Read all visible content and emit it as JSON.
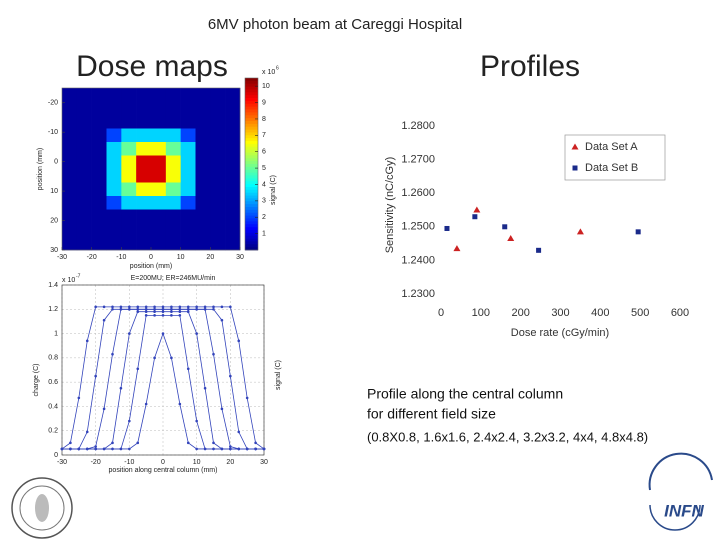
{
  "slide": {
    "title": "6MV photon beam  at Careggi Hospital",
    "left_heading": "Dose maps",
    "right_heading": "Profiles",
    "caption": [
      "Profile along the central column",
      "for different field size",
      "(0.8X0.8, 1.6x1.6, 2.4x2.4, 3.2x3.2, 4x4, 4.8x4.8)"
    ],
    "logo_text": "INFN"
  },
  "chart_data": [
    {
      "type": "heatmap",
      "x_label": "position (mm)",
      "y_label": "position (mm)",
      "xlim": [
        -30,
        30
      ],
      "xticks": [
        -30,
        -20,
        -10,
        0,
        10,
        20,
        30
      ],
      "ylim": [
        -25,
        30
      ],
      "yticks": [
        -20,
        -10,
        0,
        10,
        20,
        30
      ],
      "y_reversed": true,
      "z": [
        [
          0.3,
          0.3,
          0.3,
          0.3,
          0.3,
          0.3,
          0.3,
          0.3,
          0.3,
          0.3,
          0.3,
          0.3
        ],
        [
          0.3,
          0.3,
          0.3,
          0.3,
          0.3,
          0.3,
          0.3,
          0.3,
          0.3,
          0.3,
          0.3,
          0.3
        ],
        [
          0.3,
          0.3,
          0.3,
          0.3,
          0.3,
          0.3,
          0.3,
          0.3,
          0.3,
          0.3,
          0.3,
          0.3
        ],
        [
          0.3,
          0.3,
          0.3,
          2.0,
          3.5,
          3.5,
          3.5,
          3.5,
          2.0,
          0.3,
          0.3,
          0.3
        ],
        [
          0.3,
          0.3,
          0.3,
          3.5,
          5.0,
          6.5,
          6.5,
          5.0,
          3.5,
          0.3,
          0.3,
          0.3
        ],
        [
          0.3,
          0.3,
          0.3,
          3.5,
          6.5,
          9.6,
          9.6,
          6.5,
          3.5,
          0.3,
          0.3,
          0.3
        ],
        [
          0.3,
          0.3,
          0.3,
          3.5,
          6.5,
          9.6,
          9.6,
          6.5,
          3.5,
          0.3,
          0.3,
          0.3
        ],
        [
          0.3,
          0.3,
          0.3,
          3.5,
          5.0,
          6.5,
          6.5,
          5.0,
          3.5,
          0.3,
          0.3,
          0.3
        ],
        [
          0.3,
          0.3,
          0.3,
          2.0,
          3.5,
          3.5,
          3.5,
          3.5,
          2.0,
          0.3,
          0.3,
          0.3
        ],
        [
          0.3,
          0.3,
          0.3,
          0.3,
          0.3,
          0.3,
          0.3,
          0.3,
          0.3,
          0.3,
          0.3,
          0.3
        ],
        [
          0.3,
          0.3,
          0.3,
          0.3,
          0.3,
          0.3,
          0.3,
          0.3,
          0.3,
          0.3,
          0.3,
          0.3
        ],
        [
          0.3,
          0.3,
          0.3,
          0.3,
          0.3,
          0.3,
          0.3,
          0.3,
          0.3,
          0.3,
          0.3,
          0.3
        ]
      ],
      "zlim": [
        0,
        10.5
      ],
      "zticks": [
        1,
        2,
        3,
        4,
        5,
        6,
        7,
        8,
        9,
        10
      ],
      "colormap": "jet",
      "colorbar_label": "signal (C)",
      "colorbar_scale": "x 10",
      "colorbar_scale_exponent": "6"
    },
    {
      "type": "line",
      "title": "E=200MU; ER=246MU/min",
      "x_label": "position along central column (mm)",
      "y_label": "charge (C)",
      "y_scale": "x 10",
      "y_scale_exponent": "-7",
      "side_label": "signal (C)",
      "x": [
        -30,
        -27.5,
        -25,
        -22.5,
        -20,
        -17.5,
        -15,
        -12.5,
        -10,
        -7.5,
        -5,
        -2.5,
        0,
        2.5,
        5,
        7.5,
        10,
        12.5,
        15,
        17.5,
        20,
        22.5,
        25,
        27.5,
        30
      ],
      "series": [
        {
          "color": "#3344bb",
          "values": [
            0.05,
            0.05,
            0.05,
            0.05,
            0.05,
            0.05,
            0.05,
            0.05,
            0.05,
            0.1,
            0.42,
            0.8,
            1.0,
            0.8,
            0.42,
            0.1,
            0.05,
            0.05,
            0.05,
            0.05,
            0.05,
            0.05,
            0.05,
            0.05,
            0.05
          ]
        },
        {
          "color": "#3344bb",
          "values": [
            0.05,
            0.05,
            0.05,
            0.05,
            0.05,
            0.05,
            0.05,
            0.05,
            0.28,
            0.71,
            1.15,
            1.15,
            1.15,
            1.15,
            1.15,
            0.71,
            0.28,
            0.05,
            0.05,
            0.05,
            0.05,
            0.05,
            0.05,
            0.05,
            0.05
          ]
        },
        {
          "color": "#3344bb",
          "values": [
            0.05,
            0.05,
            0.05,
            0.05,
            0.05,
            0.05,
            0.1,
            0.55,
            1.0,
            1.18,
            1.18,
            1.18,
            1.18,
            1.18,
            1.18,
            1.18,
            1.0,
            0.55,
            0.1,
            0.05,
            0.05,
            0.05,
            0.05,
            0.05,
            0.05
          ]
        },
        {
          "color": "#3344bb",
          "values": [
            0.05,
            0.05,
            0.05,
            0.05,
            0.07,
            0.38,
            0.83,
            1.2,
            1.2,
            1.2,
            1.2,
            1.2,
            1.2,
            1.2,
            1.2,
            1.2,
            1.2,
            1.2,
            0.83,
            0.38,
            0.07,
            0.05,
            0.05,
            0.05,
            0.05
          ]
        },
        {
          "color": "#3344bb",
          "values": [
            0.05,
            0.05,
            0.05,
            0.19,
            0.65,
            1.11,
            1.2,
            1.2,
            1.2,
            1.2,
            1.2,
            1.2,
            1.2,
            1.2,
            1.2,
            1.2,
            1.2,
            1.2,
            1.2,
            1.11,
            0.65,
            0.19,
            0.05,
            0.05,
            0.05
          ]
        },
        {
          "color": "#3344bb",
          "values": [
            0.05,
            0.1,
            0.47,
            0.94,
            1.22,
            1.22,
            1.22,
            1.22,
            1.22,
            1.22,
            1.22,
            1.22,
            1.22,
            1.22,
            1.22,
            1.22,
            1.22,
            1.22,
            1.22,
            1.22,
            1.22,
            0.94,
            0.47,
            0.1,
            0.05
          ]
        }
      ],
      "xlim": [
        -30,
        30
      ],
      "xticks": [
        -30,
        -20,
        -10,
        0,
        10,
        20,
        30
      ],
      "ylim": [
        0,
        1.4
      ],
      "yticks": [
        0,
        0.2,
        0.4,
        0.6,
        0.8,
        1,
        1.2,
        1.4
      ],
      "grid": true,
      "markers": true
    },
    {
      "type": "scatter",
      "x_label": "Dose rate (cGy/min)",
      "y_label": "Sensitivity (nC/cGy)",
      "series": [
        {
          "name": "Data Set A",
          "color": "#cc2222",
          "marker": "triangle",
          "x": [
            40,
            90,
            175,
            350
          ],
          "values": [
            1.2435,
            1.255,
            1.2465,
            1.2485
          ]
        },
        {
          "name": "Data Set B",
          "color": "#1a2a8a",
          "marker": "square",
          "x": [
            15,
            85,
            160,
            245,
            495
          ],
          "values": [
            1.2495,
            1.253,
            1.25,
            1.243,
            1.2485
          ]
        }
      ],
      "xlim": [
        0,
        600
      ],
      "xticks": [
        0,
        100,
        200,
        300,
        400,
        500,
        600
      ],
      "ylim": [
        1.23,
        1.28
      ],
      "yticks": [
        {
          "value": 1.23,
          "label": "1.2300"
        },
        {
          "value": 1.24,
          "label": "1.2400"
        },
        {
          "value": 1.25,
          "label": "1.2500"
        },
        {
          "value": 1.26,
          "label": "1.2600"
        },
        {
          "value": 1.27,
          "label": "1.2700"
        },
        {
          "value": 1.28,
          "label": "1.2800"
        }
      ],
      "legend": "upper right"
    }
  ]
}
